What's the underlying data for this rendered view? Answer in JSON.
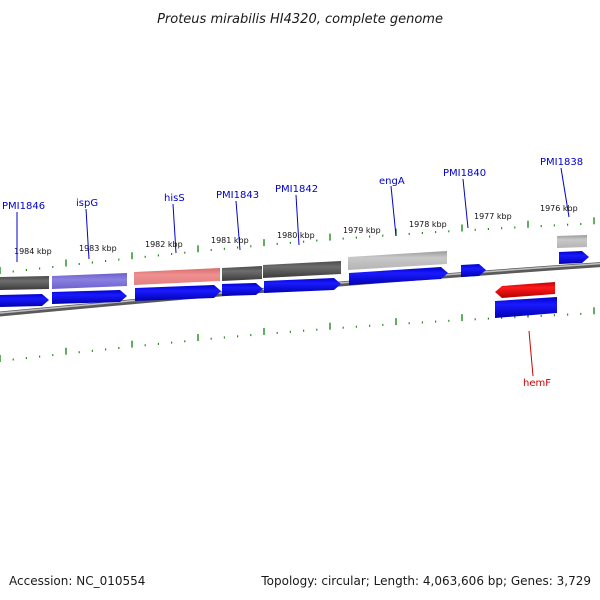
{
  "header": {
    "title": "Proteus mirabilis HI4320, complete genome"
  },
  "footer": {
    "accession": "Accession: NC_010554",
    "topology": "Topology: circular; Length: 4,063,606 bp; Genes: 3,729"
  },
  "colors": {
    "forward_cds": "#0000ee",
    "reverse_highlight": "#ee0000",
    "tick": "#228b22",
    "backbone": "#8a8a8a",
    "label_forward": "#0000cc",
    "label_reverse": "#cc0000"
  },
  "scale": {
    "labels": [
      "1984 kbp",
      "1983 kbp",
      "1982 kbp",
      "1981 kbp",
      "1980 kbp",
      "1979 kbp",
      "1978 kbp",
      "1977 kbp",
      "1976 kbp"
    ]
  },
  "genes": [
    {
      "label": "PMI1846",
      "strand": "forward"
    },
    {
      "label": "ispG",
      "strand": "forward"
    },
    {
      "label": "hisS",
      "strand": "forward"
    },
    {
      "label": "PMI1843",
      "strand": "forward"
    },
    {
      "label": "PMI1842",
      "strand": "forward"
    },
    {
      "label": "engA",
      "strand": "forward"
    },
    {
      "label": "PMI1840",
      "strand": "forward"
    },
    {
      "label": "PMI1838",
      "strand": "forward"
    },
    {
      "label": "hemF",
      "strand": "reverse"
    }
  ]
}
